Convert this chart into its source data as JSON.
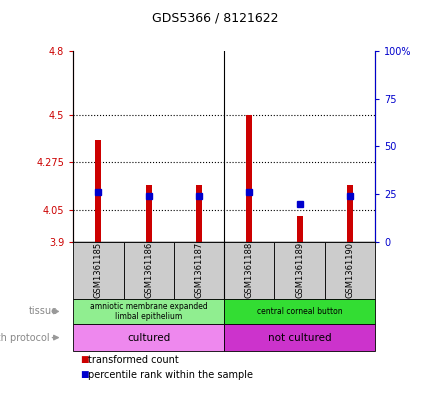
{
  "title": "GDS5366 / 8121622",
  "samples": [
    "GSM1361185",
    "GSM1361186",
    "GSM1361187",
    "GSM1361188",
    "GSM1361189",
    "GSM1361190"
  ],
  "transformed_counts": [
    4.38,
    4.17,
    4.17,
    4.5,
    4.02,
    4.17
  ],
  "percentile_ranks": [
    26,
    24,
    24,
    26,
    20,
    24
  ],
  "ylim_left": [
    3.9,
    4.8
  ],
  "ylim_right": [
    0,
    100
  ],
  "yticks_left": [
    3.9,
    4.05,
    4.275,
    4.5,
    4.8
  ],
  "ytick_labels_left": [
    "3.9",
    "4.05",
    "4.275",
    "4.5",
    "4.8"
  ],
  "yticks_right": [
    0,
    25,
    50,
    75,
    100
  ],
  "ytick_labels_right": [
    "0",
    "25",
    "50",
    "75",
    "100%"
  ],
  "hlines": [
    4.05,
    4.275,
    4.5
  ],
  "bar_bottom": 3.9,
  "bar_color": "#cc0000",
  "dot_color": "#0000cc",
  "tissue_groups": [
    {
      "label": "amniotic membrane expanded\nlimbal epithelium",
      "samples": [
        0,
        1,
        2
      ],
      "color": "#90ee90"
    },
    {
      "label": "central corneal button",
      "samples": [
        3,
        4,
        5
      ],
      "color": "#33dd33"
    }
  ],
  "growth_protocol_groups": [
    {
      "label": "cultured",
      "samples": [
        0,
        1,
        2
      ],
      "color": "#ee88ee"
    },
    {
      "label": "not cultured",
      "samples": [
        3,
        4,
        5
      ],
      "color": "#cc33cc"
    }
  ],
  "tissue_label": "tissue",
  "growth_label": "growth protocol",
  "legend_items": [
    {
      "label": "transformed count",
      "color": "#cc0000"
    },
    {
      "label": "percentile rank within the sample",
      "color": "#0000cc"
    }
  ],
  "sample_bg_color": "#cccccc",
  "title_color": "#000000",
  "left_axis_color": "#cc0000",
  "right_axis_color": "#0000cc",
  "group_divider": 2.5
}
